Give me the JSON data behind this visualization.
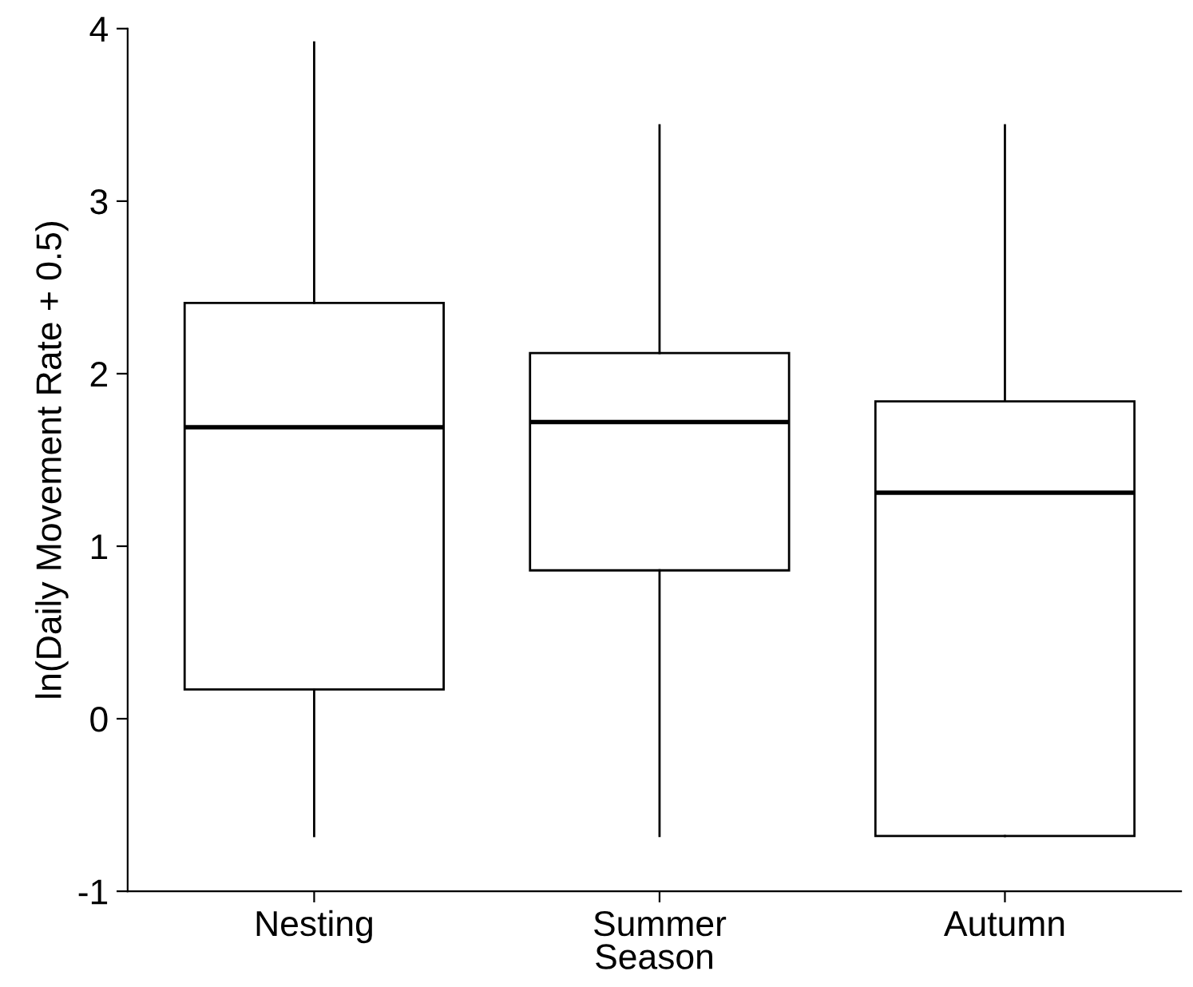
{
  "chart_data": {
    "type": "box",
    "xlabel": "Season",
    "ylabel": "ln(Daily Movement Rate + 0.5)",
    "categories": [
      "Nesting",
      "Summer",
      "Autumn"
    ],
    "boxes": [
      {
        "low": -0.68,
        "q1": 0.17,
        "median": 1.69,
        "q3": 2.41,
        "high": 3.92
      },
      {
        "low": -0.68,
        "q1": 0.86,
        "median": 1.72,
        "q3": 2.12,
        "high": 3.44
      },
      {
        "low": -0.68,
        "q1": -0.68,
        "median": 1.31,
        "q3": 1.84,
        "high": 3.44
      }
    ],
    "color": "#000000",
    "ylim": [
      -1,
      4
    ],
    "yticks": [
      -1,
      0,
      1,
      2,
      3,
      4
    ]
  }
}
